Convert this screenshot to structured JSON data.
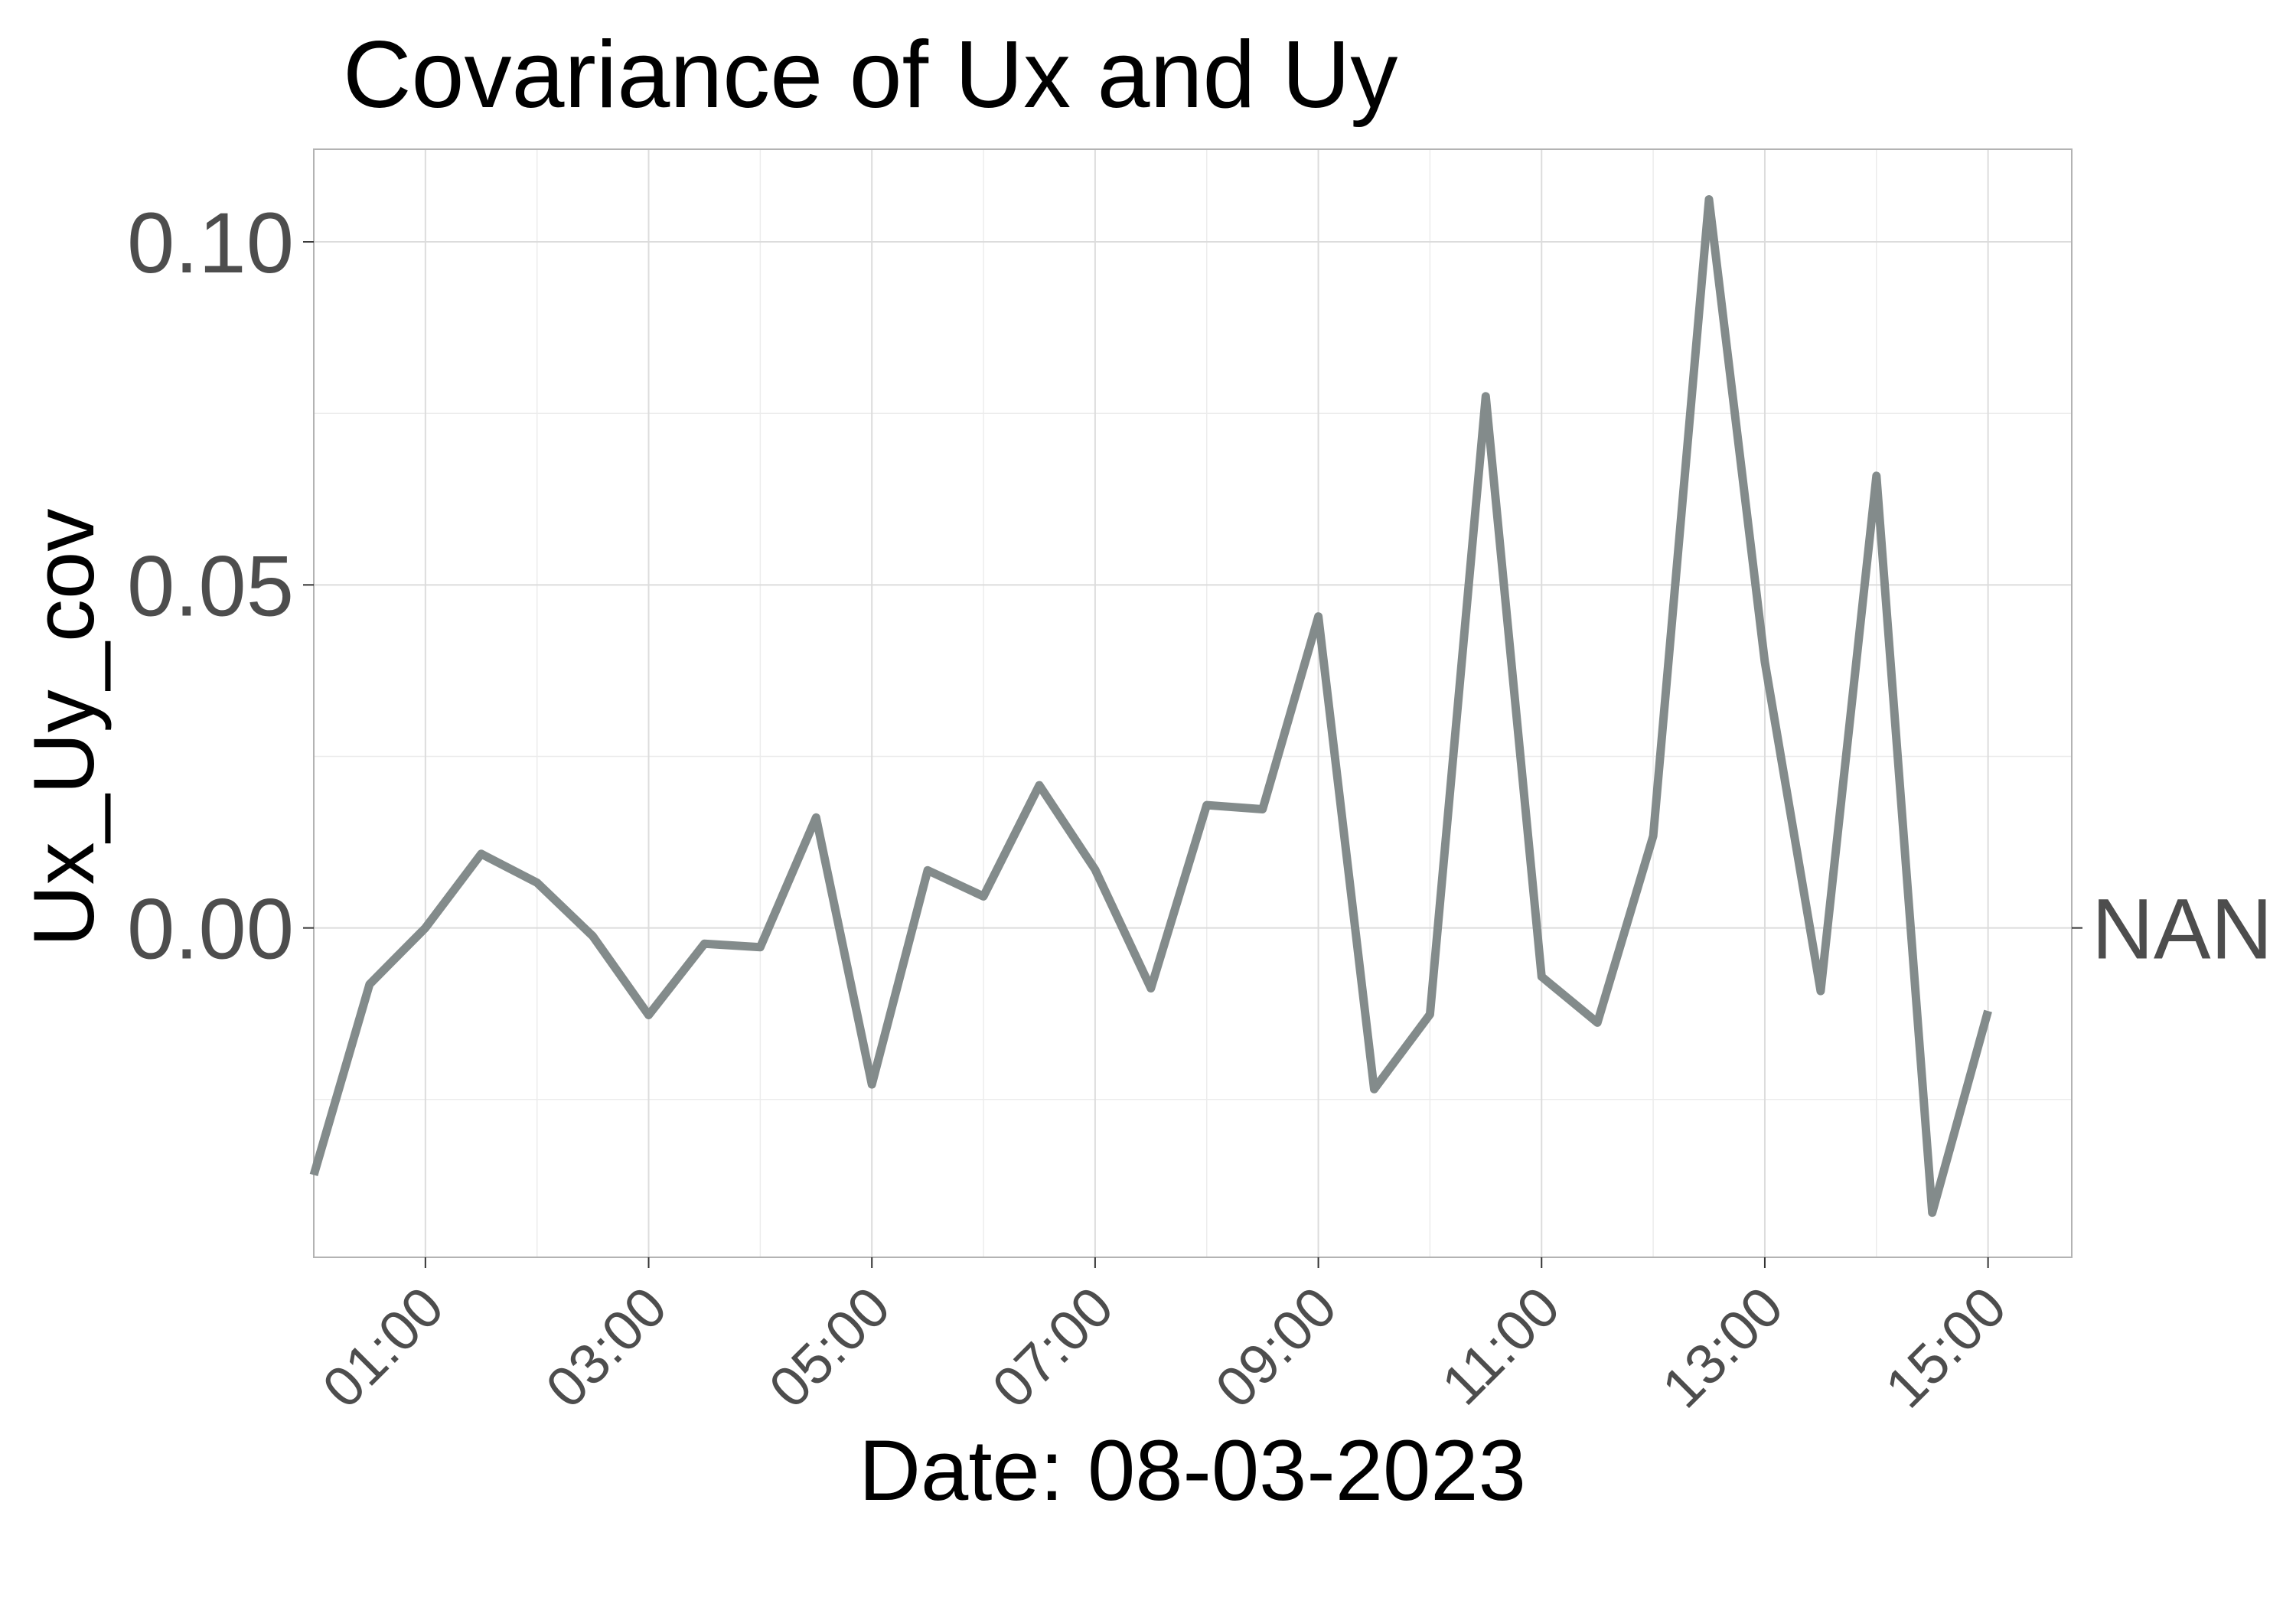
{
  "chart_data": {
    "type": "line",
    "title": "Covariance of Ux and Uy",
    "xlabel": "Date: 08-03-2023",
    "ylabel": "Ux_Uy_cov",
    "secondary_axis_labels": [
      "NAN"
    ],
    "x_tick_labels": [
      "01:00",
      "03:00",
      "05:00",
      "07:00",
      "09:00",
      "11:00",
      "13:00",
      "15:00"
    ],
    "y_tick_labels": [
      "0.00",
      "0.05",
      "0.10"
    ],
    "ylim": [
      -0.048,
      0.1135
    ],
    "xlim": [
      "2023-03-08 00:00",
      "2023-03-08 15:45"
    ],
    "grid": true,
    "line_color": "#838B8B",
    "series": [
      {
        "x": [
          "00:00",
          "00:30",
          "01:00",
          "01:30",
          "02:00",
          "02:30",
          "03:00",
          "03:30",
          "04:00",
          "04:30",
          "05:00",
          "05:30",
          "06:00",
          "06:30",
          "07:00",
          "07:30",
          "08:00",
          "08:30",
          "09:00",
          "09:30",
          "10:00",
          "10:30",
          "11:00",
          "11:30",
          "12:00",
          "12:30",
          "13:00",
          "13:30",
          "14:00",
          "14:30",
          "15:00"
        ],
        "values": [
          -0.036,
          -0.0082,
          0.0,
          0.0108,
          0.0066,
          -0.0012,
          -0.0127,
          -0.0023,
          -0.0028,
          0.0161,
          -0.0228,
          0.0084,
          0.0046,
          0.0208,
          0.0085,
          -0.0088,
          0.0179,
          0.0173,
          0.0454,
          -0.0235,
          -0.0126,
          0.0775,
          -0.0071,
          -0.0138,
          0.0134,
          0.1062,
          0.0388,
          -0.0092,
          0.0659,
          -0.0415,
          -0.0121
        ]
      }
    ]
  }
}
